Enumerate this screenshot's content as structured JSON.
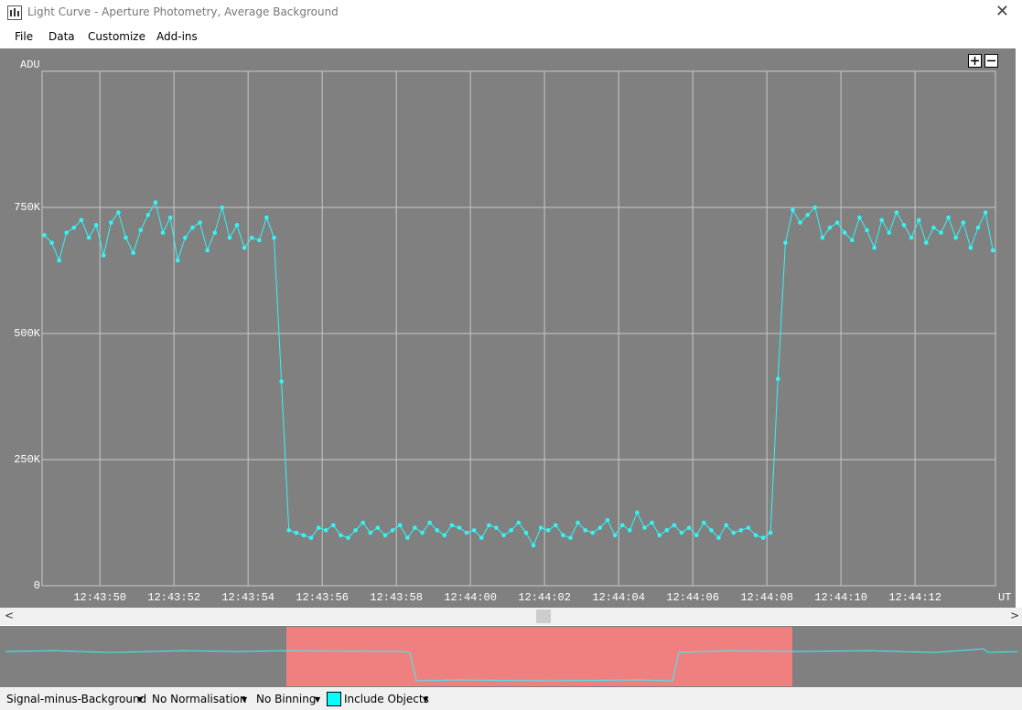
{
  "window": {
    "title": "Light Curve - Aperture Photometry, Average Background"
  },
  "menu": [
    "File",
    "Data",
    "Customize",
    "Add-ins"
  ],
  "chart_data": {
    "type": "line",
    "y_label": "ADU",
    "x_label": "UT",
    "x": [
      45828.5,
      45828.7,
      45828.9,
      45829.1,
      45829.3,
      45829.5,
      45829.7,
      45829.9,
      45830.1,
      45830.3,
      45830.5,
      45830.7,
      45830.9,
      45831.1,
      45831.3,
      45831.5,
      45831.7,
      45831.9,
      45832.1,
      45832.3,
      45832.5,
      45832.7,
      45832.9,
      45833.1,
      45833.3,
      45833.5,
      45833.7,
      45833.9,
      45834.1,
      45834.3,
      45834.5,
      45834.7,
      45834.9,
      45835.1,
      45835.3,
      45835.5,
      45835.7,
      45835.9,
      45836.1,
      45836.3,
      45836.5,
      45836.7,
      45836.9,
      45837.1,
      45837.3,
      45837.5,
      45837.7,
      45837.9,
      45838.1,
      45838.3,
      45838.5,
      45838.7,
      45838.9,
      45839.1,
      45839.3,
      45839.5,
      45839.7,
      45839.9,
      45840.1,
      45840.3,
      45840.5,
      45840.7,
      45840.9,
      45841.1,
      45841.3,
      45841.5,
      45841.7,
      45841.9,
      45842.1,
      45842.3,
      45842.5,
      45842.7,
      45842.9,
      45843.1,
      45843.3,
      45843.5,
      45843.7,
      45843.9,
      45844.1,
      45844.3,
      45844.5,
      45844.7,
      45844.9,
      45845.1,
      45845.3,
      45845.5,
      45845.7,
      45845.9,
      45846.1,
      45846.3,
      45846.5,
      45846.7,
      45846.9,
      45847.1,
      45847.3,
      45847.5,
      45847.7,
      45847.9,
      45848.1,
      45848.3,
      45848.5,
      45848.7,
      45848.9,
      45849.1,
      45849.3,
      45849.5,
      45849.7,
      45849.9,
      45850.1,
      45850.3,
      45850.5,
      45850.7,
      45850.9,
      45851.1,
      45851.3,
      45851.5,
      45851.7,
      45851.9,
      45852.1,
      45852.3,
      45852.5,
      45852.7,
      45852.9,
      45853.1,
      45853.3,
      45853.5,
      45853.7,
      45853.9,
      45854.1
    ],
    "series": [
      {
        "color": "#33f5f5",
        "values": [
          695000,
          680000,
          645000,
          700000,
          710000,
          725000,
          690000,
          715000,
          655000,
          720000,
          740000,
          690000,
          660000,
          705000,
          735000,
          760000,
          700000,
          730000,
          645000,
          690000,
          710000,
          720000,
          665000,
          700000,
          750000,
          690000,
          715000,
          670000,
          690000,
          685000,
          730000,
          690000,
          405000,
          110000,
          105000,
          100000,
          95000,
          115000,
          110000,
          120000,
          100000,
          95000,
          110000,
          125000,
          105000,
          115000,
          100000,
          110000,
          120000,
          95000,
          115000,
          105000,
          125000,
          110000,
          100000,
          120000,
          115000,
          105000,
          110000,
          95000,
          120000,
          115000,
          100000,
          110000,
          125000,
          105000,
          80000,
          115000,
          110000,
          120000,
          100000,
          95000,
          125000,
          110000,
          105000,
          115000,
          130000,
          100000,
          120000,
          110000,
          145000,
          115000,
          125000,
          100000,
          110000,
          120000,
          105000,
          115000,
          100000,
          125000,
          110000,
          95000,
          120000,
          105000,
          110000,
          115000,
          100000,
          95000,
          105000,
          410000,
          680000,
          745000,
          720000,
          735000,
          750000,
          690000,
          710000,
          720000,
          700000,
          685000,
          730000,
          705000,
          670000,
          725000,
          700000,
          740000,
          715000,
          690000,
          725000,
          680000,
          710000,
          700000,
          730000,
          690000,
          720000,
          670000,
          710000,
          740000,
          665000
        ]
      }
    ],
    "xlim": [
      45828.44,
      45854.17
    ],
    "xticks": [
      {
        "value": 45830,
        "label": "12:43:50"
      },
      {
        "value": 45832,
        "label": "12:43:52"
      },
      {
        "value": 45834,
        "label": "12:43:54"
      },
      {
        "value": 45836,
        "label": "12:43:56"
      },
      {
        "value": 45838,
        "label": "12:43:58"
      },
      {
        "value": 45840,
        "label": "12:44:00"
      },
      {
        "value": 45842,
        "label": "12:44:02"
      },
      {
        "value": 45844,
        "label": "12:44:04"
      },
      {
        "value": 45846,
        "label": "12:44:06"
      },
      {
        "value": 45848,
        "label": "12:44:08"
      },
      {
        "value": 45850,
        "label": "12:44:10"
      },
      {
        "value": 45852,
        "label": "12:44:12"
      }
    ],
    "ylim": [
      0,
      1020000
    ],
    "yticks": [
      0,
      {
        "value": 250000,
        "label": "250K"
      },
      {
        "value": 500000,
        "label": "500K"
      },
      {
        "value": 750000,
        "label": "750K"
      }
    ],
    "grid": true
  },
  "status_bar": [
    "Signal-minus-Background",
    "No Normalisation",
    "No Binning",
    "Include Objects"
  ]
}
